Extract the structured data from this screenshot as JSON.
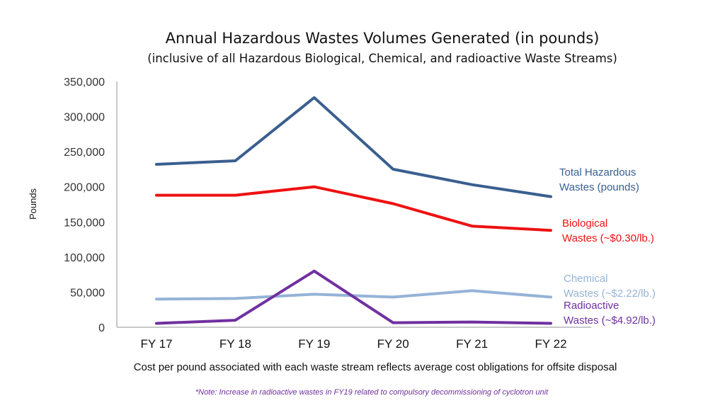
{
  "chart_data": {
    "type": "line",
    "title": "Annual Hazardous Wastes Volumes Generated (in pounds)",
    "subtitle": "(inclusive of all Hazardous Biological, Chemical, and radioactive Waste Streams)",
    "xlabel": "",
    "ylabel": "Pounds",
    "categories": [
      "FY 17",
      "FY 18",
      "FY 19",
      "FY 20",
      "FY 21",
      "FY 22"
    ],
    "ylim": [
      0,
      350000
    ],
    "yticks": [
      0,
      50000,
      100000,
      150000,
      200000,
      250000,
      300000,
      350000
    ],
    "ytick_labels": [
      "0",
      "50,000",
      "100,000",
      "150,000",
      "200,000",
      "250,000",
      "300,000",
      "350,000"
    ],
    "grid": false,
    "series": [
      {
        "name": "Total Hazardous Wastes (pounds)",
        "label_line1": "Total Hazardous",
        "label_line2": "Wastes (pounds)",
        "color": "#3a5f8f",
        "values": [
          232000,
          237000,
          327000,
          225000,
          203000,
          186000
        ]
      },
      {
        "name": "Biological Wastes (~$0.30/lb.)",
        "label_line1": "Biological",
        "label_line2": "Wastes  (~$0.30/lb.)",
        "color": "#ee1111",
        "values": [
          188000,
          188000,
          200000,
          176000,
          144000,
          138000
        ]
      },
      {
        "name": "Chemical Wastes (~$2.22/lb.)",
        "label_line1": "Chemical",
        "label_line2": "Wastes (~$2.22/lb.)",
        "color": "#95b3d7",
        "values": [
          40000,
          41000,
          47000,
          43000,
          52000,
          43000
        ]
      },
      {
        "name": "Radioactive Wastes (~$4.92/lb.)",
        "label_line1": "Radioactive",
        "label_line2": "Wastes (~$4.92/lb.)",
        "color": "#7030a0",
        "values": [
          5500,
          10000,
          80000,
          6500,
          7500,
          5500
        ]
      }
    ],
    "annotations": {
      "cost_note": "Cost per pound associated with each waste stream reflects average cost obligations for offsite disposal",
      "footnote": "*Note: Increase in radioactive wastes in FY19 related to compulsory decommissioning of cyclotron unit"
    }
  }
}
